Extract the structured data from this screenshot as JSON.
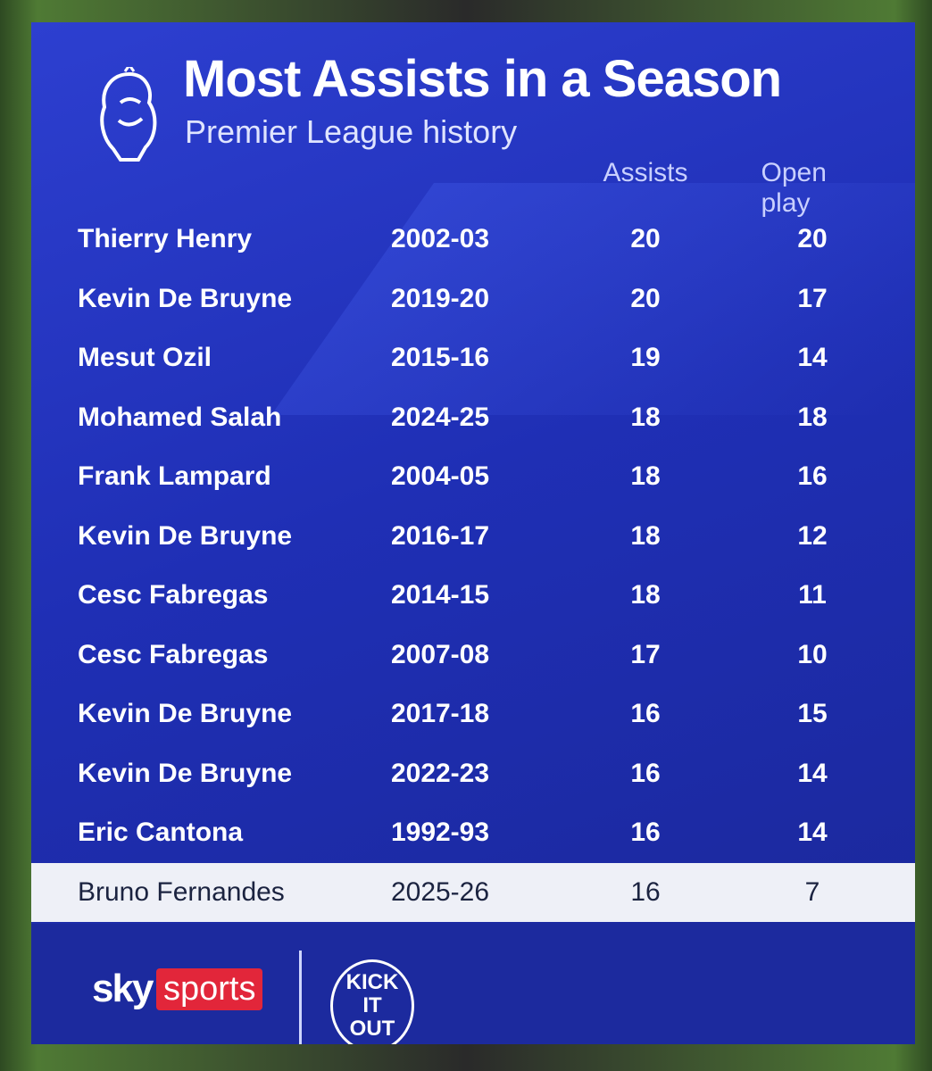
{
  "header": {
    "title": "Most Assists in a Season",
    "subtitle": "Premier League history"
  },
  "table": {
    "column_headers": [
      "Assists",
      "Open play"
    ],
    "rows": [
      [
        "Thierry Henry",
        "2002-03",
        20,
        20
      ],
      [
        "Kevin De Bruyne",
        "2019-20",
        20,
        17
      ],
      [
        "Mesut Ozil",
        "2015-16",
        19,
        14
      ],
      [
        "Mohamed Salah",
        "2024-25",
        18,
        18
      ],
      [
        "Frank Lampard",
        "2004-05",
        18,
        16
      ],
      [
        "Kevin De Bruyne",
        "2016-17",
        18,
        12
      ],
      [
        "Cesc Fabregas",
        "2014-15",
        18,
        11
      ],
      [
        "Cesc Fabregas",
        "2007-08",
        17,
        10
      ],
      [
        "Kevin De Bruyne",
        "2017-18",
        16,
        15
      ],
      [
        "Kevin De Bruyne",
        "2022-23",
        16,
        14
      ],
      [
        "Eric Cantona",
        "1992-93",
        16,
        14
      ],
      [
        "Bruno Fernandes",
        "2025-26",
        16,
        7
      ]
    ],
    "highlighted_row": 11
  },
  "footer": {
    "sky": "sky",
    "sports": "sports",
    "kick_it_out": [
      "KICK",
      "IT",
      "OUT"
    ]
  }
}
